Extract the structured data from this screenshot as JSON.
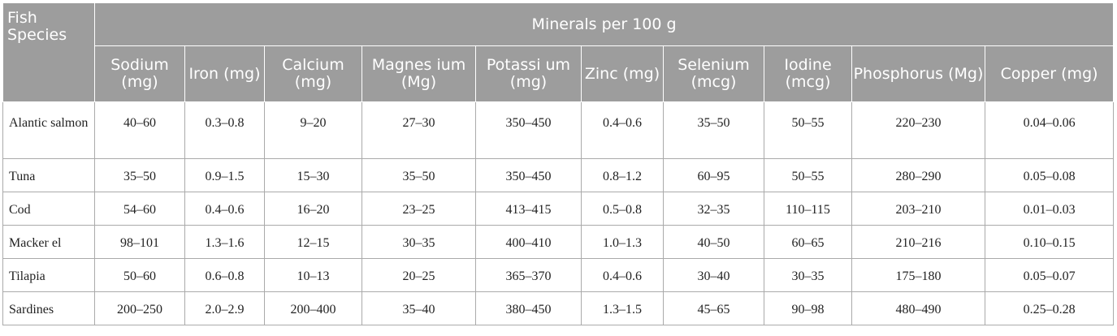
{
  "header": {
    "fish_col": "Fish Species",
    "group": "Minerals per 100 g",
    "columns": [
      "Sodium (mg)",
      "Iron (mg)",
      "Calcium (mg)",
      "Magnes ium (Mg)",
      "Potassi um (mg)",
      "Zinc (mg)",
      "Selenium (mcg)",
      "Iodine (mcg)",
      "Phosphorus (Mg)",
      "Copper (mg)"
    ]
  },
  "rows": [
    {
      "fish": "Alantic salmon",
      "values": [
        "40–60",
        "0.3–0.8",
        "9–20",
        "27–30",
        "350–450",
        "0.4–0.6",
        "35–50",
        "50–55",
        "220–230",
        "0.04–0.06"
      ]
    },
    {
      "fish": "Tuna",
      "values": [
        "35–50",
        "0.9–1.5",
        "15–30",
        "35–50",
        "350–450",
        "0.8–1.2",
        "60–95",
        "50–55",
        "280–290",
        "0.05–0.08"
      ]
    },
    {
      "fish": "Cod",
      "values": [
        "54–60",
        "0.4–0.6",
        "16–20",
        "23–25",
        "413–415",
        "0.5–0.8",
        "32–35",
        "110–115",
        "203–210",
        "0.01–0.03"
      ]
    },
    {
      "fish": "Macker el",
      "values": [
        "98–101",
        "1.3–1.6",
        "12–15",
        "30–35",
        "400–410",
        "1.0–1.3",
        "40–50",
        "60–65",
        "210–216",
        "0.10–0.15"
      ]
    },
    {
      "fish": "Tilapia",
      "values": [
        "50–60",
        "0.6–0.8",
        "10–13",
        "20–25",
        "365–370",
        "0.4–0.6",
        "30–40",
        "30–35",
        "175–180",
        "0.05–0.07"
      ]
    },
    {
      "fish": "Sardines",
      "values": [
        "200–250",
        "2.0–2.9",
        "200–400",
        "35–40",
        "380–450",
        "1.3–1.5",
        "45–65",
        "90–98",
        "480–490",
        "0.25–0.28"
      ]
    }
  ]
}
